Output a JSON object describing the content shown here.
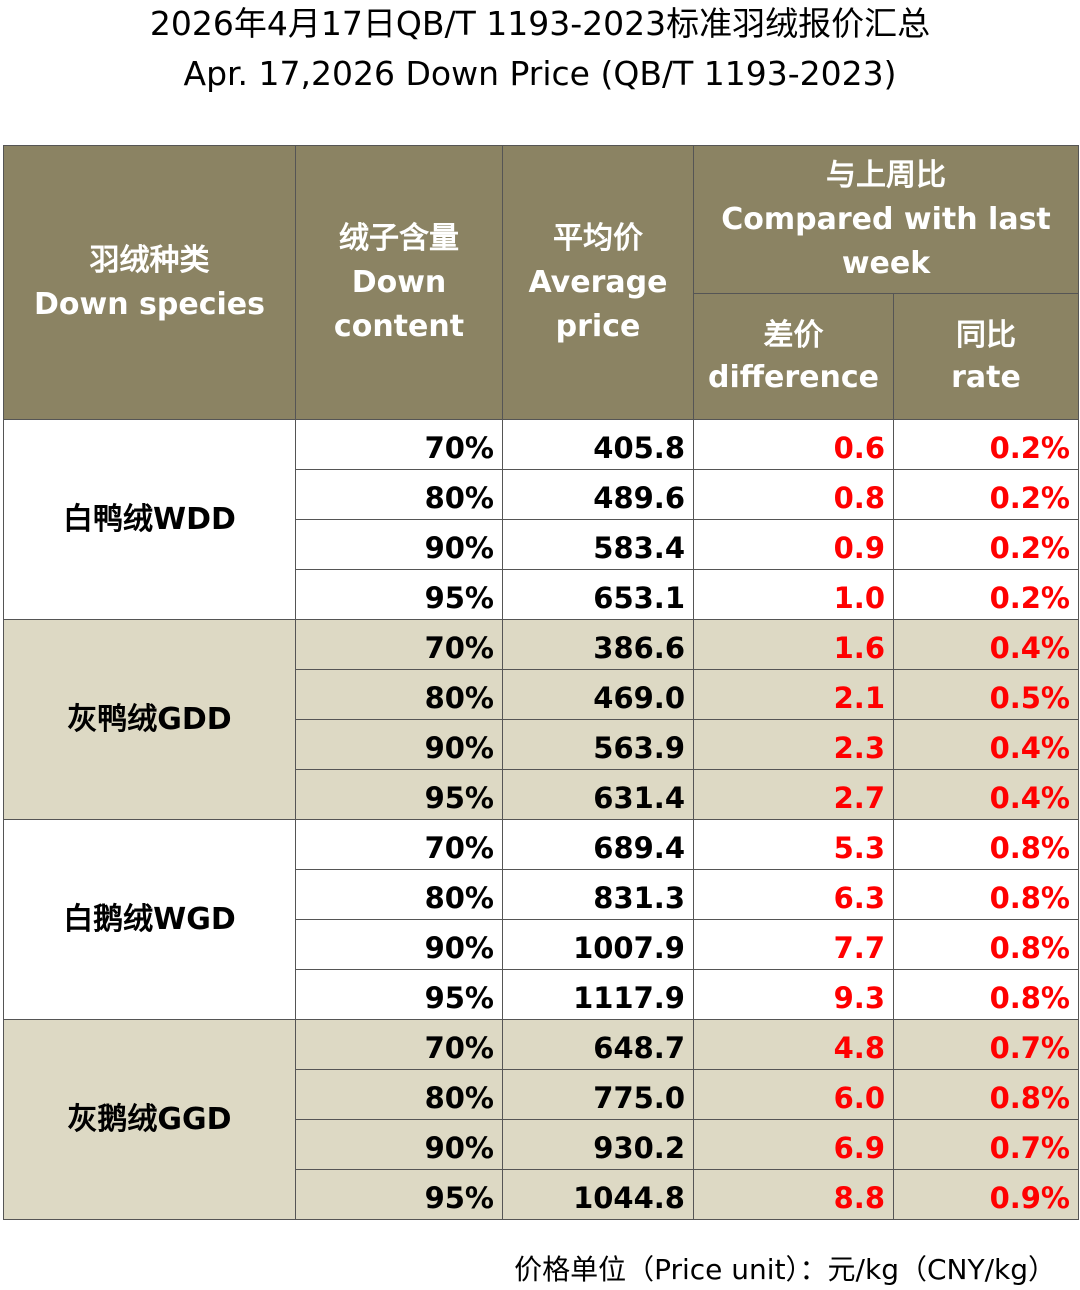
{
  "title_cn": "2026年4月17日QB/T 1193-2023标准羽绒报价汇总",
  "title_en": "Apr. 17,2026 Down Price (QB/T 1193-2023)",
  "headers": {
    "species_cn": "羽绒种类",
    "species_en": "Down species",
    "content_cn": "绒子含量",
    "content_en1": "Down",
    "content_en2": "content",
    "price_cn": "平均价",
    "price_en1": "Average",
    "price_en2": "price",
    "compare_cn": "与上周比",
    "compare_en1": "Compared with last",
    "compare_en2": "week",
    "diff_cn": "差价",
    "diff_en": "difference",
    "rate_cn": "同比",
    "rate_en": "rate"
  },
  "groups": [
    {
      "species": "白鸭绒WDD",
      "rows": [
        {
          "content": "70%",
          "price": "405.8",
          "diff": "0.6",
          "rate": "0.2%"
        },
        {
          "content": "80%",
          "price": "489.6",
          "diff": "0.8",
          "rate": "0.2%"
        },
        {
          "content": "90%",
          "price": "583.4",
          "diff": "0.9",
          "rate": "0.2%"
        },
        {
          "content": "95%",
          "price": "653.1",
          "diff": "1.0",
          "rate": "0.2%"
        }
      ]
    },
    {
      "species": "灰鸭绒GDD",
      "rows": [
        {
          "content": "70%",
          "price": "386.6",
          "diff": "1.6",
          "rate": "0.4%"
        },
        {
          "content": "80%",
          "price": "469.0",
          "diff": "2.1",
          "rate": "0.5%"
        },
        {
          "content": "90%",
          "price": "563.9",
          "diff": "2.3",
          "rate": "0.4%"
        },
        {
          "content": "95%",
          "price": "631.4",
          "diff": "2.7",
          "rate": "0.4%"
        }
      ]
    },
    {
      "species": "白鹅绒WGD",
      "rows": [
        {
          "content": "70%",
          "price": "689.4",
          "diff": "5.3",
          "rate": "0.8%"
        },
        {
          "content": "80%",
          "price": "831.3",
          "diff": "6.3",
          "rate": "0.8%"
        },
        {
          "content": "90%",
          "price": "1007.9",
          "diff": "7.7",
          "rate": "0.8%"
        },
        {
          "content": "95%",
          "price": "1117.9",
          "diff": "9.3",
          "rate": "0.8%"
        }
      ]
    },
    {
      "species": "灰鹅绒GGD",
      "rows": [
        {
          "content": "70%",
          "price": "648.7",
          "diff": "4.8",
          "rate": "0.7%"
        },
        {
          "content": "80%",
          "price": "775.0",
          "diff": "6.0",
          "rate": "0.8%"
        },
        {
          "content": "90%",
          "price": "930.2",
          "diff": "6.9",
          "rate": "0.7%"
        },
        {
          "content": "95%",
          "price": "1044.8",
          "diff": "8.8",
          "rate": "0.9%"
        }
      ]
    }
  ],
  "footer": "价格单位（Price unit）：元/kg（CNY/kg）",
  "colors": {
    "header_bg": "#8b8363",
    "alt_row_bg": "#ddd9c4",
    "change_text": "#ff0000"
  }
}
